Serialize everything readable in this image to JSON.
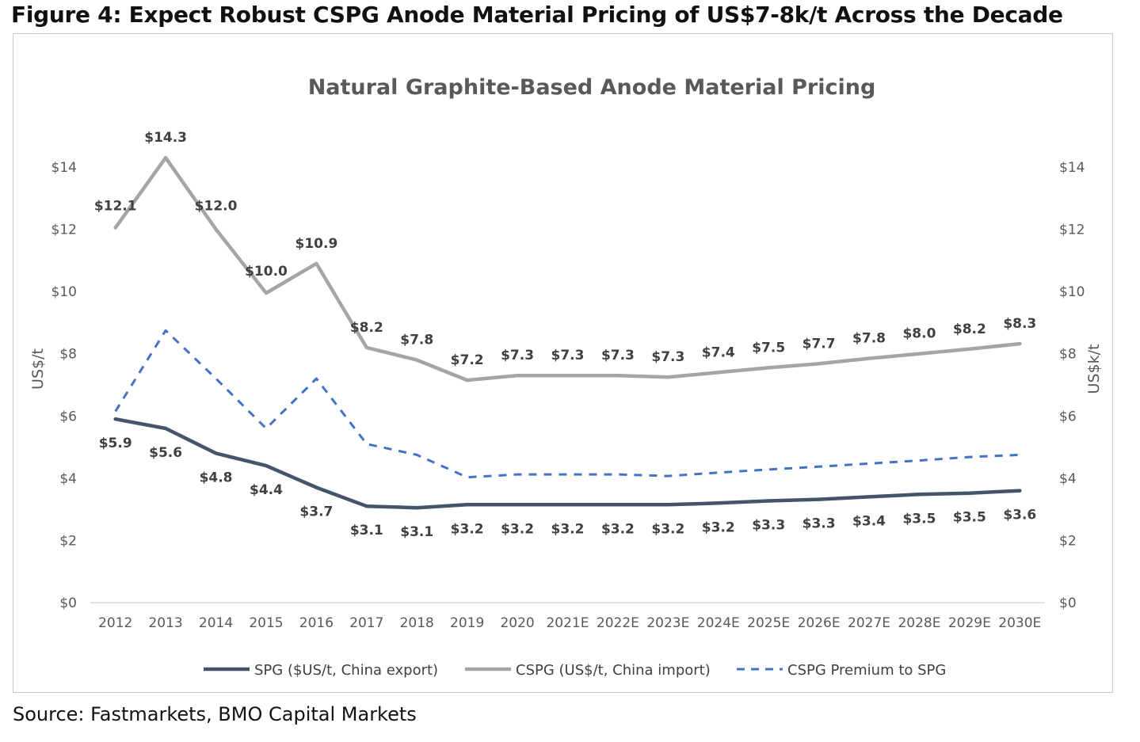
{
  "figure_title": "Figure 4: Expect Robust CSPG Anode Material Pricing of US$7-8k/t Across the Decade",
  "source": "Source: Fastmarkets, BMO Capital Markets",
  "colors": {
    "spg": "#44546a",
    "cspg": "#a5a5a5",
    "premium": "#4472c4",
    "text": "#595959",
    "data_label": "#404040",
    "axis_line": "#d9d9d9"
  },
  "chart_data": {
    "type": "line",
    "title": "Natural Graphite-Based Anode Material Pricing",
    "ylabel_left": "US$/t",
    "ylabel_right": "US$k/t",
    "ylim": [
      0,
      14
    ],
    "y_ticks": [
      0,
      2,
      4,
      6,
      8,
      10,
      12,
      14
    ],
    "y_tick_labels": [
      "$0",
      "$2",
      "$4",
      "$6",
      "$8",
      "$10",
      "$12",
      "$14"
    ],
    "y_tick_labels_right": [
      "$0",
      "$2",
      "$4",
      "$6",
      "$8",
      "$10",
      "$12",
      "$14"
    ],
    "grid": false,
    "legend_position": "bottom",
    "categories": [
      "2012",
      "2013",
      "2014",
      "2015",
      "2016",
      "2017",
      "2018",
      "2019",
      "2020",
      "2021E",
      "2022E",
      "2023E",
      "2024E",
      "2025E",
      "2026E",
      "2027E",
      "2028E",
      "2029E",
      "2030E"
    ],
    "series": [
      {
        "name": "SPG ($US/t, China export)",
        "style": "solid",
        "color": "#44546a",
        "values": [
          5.9,
          5.6,
          4.8,
          4.4,
          3.7,
          3.1,
          3.05,
          3.15,
          3.15,
          3.15,
          3.15,
          3.15,
          3.2,
          3.27,
          3.32,
          3.4,
          3.48,
          3.52,
          3.6
        ],
        "labels": [
          "$5.9",
          "$5.6",
          "$4.8",
          "$4.4",
          "$3.7",
          "$3.1",
          "$3.1",
          "$3.2",
          "$3.2",
          "$3.2",
          "$3.2",
          "$3.2",
          "$3.2",
          "$3.3",
          "$3.3",
          "$3.4",
          "$3.5",
          "$3.5",
          "$3.6"
        ]
      },
      {
        "name": "CSPG (US$/t, China import)",
        "style": "solid",
        "color": "#a5a5a5",
        "values": [
          12.05,
          14.3,
          12.0,
          9.95,
          10.9,
          8.2,
          7.8,
          7.15,
          7.3,
          7.3,
          7.3,
          7.25,
          7.4,
          7.55,
          7.68,
          7.85,
          8.0,
          8.15,
          8.32
        ],
        "labels": [
          "$12.1",
          "$14.3",
          "$12.0",
          "$10.0",
          "$10.9",
          "$8.2",
          "$7.8",
          "$7.2",
          "$7.3",
          "$7.3",
          "$7.3",
          "$7.3",
          "$7.4",
          "$7.5",
          "$7.7",
          "$7.8",
          "$8.0",
          "$8.2",
          "$8.3"
        ]
      },
      {
        "name": "CSPG Premium to SPG",
        "style": "dashed",
        "color": "#4472c4",
        "values": [
          6.15,
          8.75,
          7.2,
          5.6,
          7.2,
          5.1,
          4.75,
          4.03,
          4.12,
          4.12,
          4.12,
          4.07,
          4.18,
          4.28,
          4.37,
          4.47,
          4.57,
          4.68,
          4.75
        ],
        "labels": []
      }
    ]
  }
}
